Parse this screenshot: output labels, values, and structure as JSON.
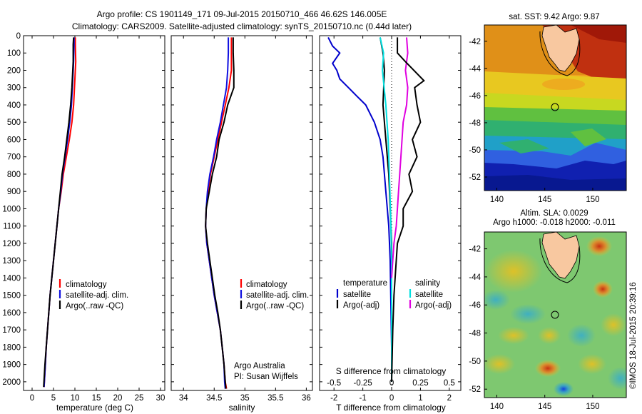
{
  "title_line1": "Argo profile: CS 1901149_171 09-Jul-2015 20150710_466 46.62S 146.005E",
  "title_line2": "Climatology: CARS2009. Satellite-adjusted climatology: synTS_20150710.nc (0.44d later)",
  "watermark": "©IMOS 18-Jul-2015 20:39:16",
  "colors": {
    "climatology": "#ff0000",
    "satellite": "#1010e0",
    "argo": "#000000",
    "t_satellite": "#0000cc",
    "s_satellite": "#00e0e0",
    "s_argo": "#e000e0",
    "land": "#f8c8a0"
  },
  "chart_data": [
    {
      "type": "line",
      "name": "temperature",
      "xlabel": "temperature (deg C)",
      "xlim": [
        -2,
        31
      ],
      "ylim": [
        2050,
        0
      ],
      "xticks": [
        0,
        5,
        10,
        15,
        20,
        25,
        30
      ],
      "yticks": [
        0,
        100,
        200,
        300,
        400,
        500,
        600,
        700,
        800,
        900,
        1000,
        1100,
        1200,
        1300,
        1400,
        1500,
        1600,
        1700,
        1800,
        1900,
        2000
      ],
      "legend": [
        "climatology",
        "satellite-adj. clim.",
        "Argo(..raw -QC)"
      ],
      "series": [
        {
          "name": "climatology",
          "color": "#ff0000",
          "x": [
            10.1,
            10.1,
            10.2,
            10.1,
            9.9,
            9.7,
            9.3,
            8.7,
            8.0,
            7.3,
            6.8,
            6.2,
            5.8,
            5.4,
            5.0,
            4.6,
            4.2,
            3.9,
            3.6,
            3.3,
            3.1,
            2.8
          ],
          "y": [
            10,
            50,
            150,
            200,
            300,
            400,
            500,
            600,
            700,
            800,
            900,
            1000,
            1100,
            1200,
            1300,
            1400,
            1500,
            1600,
            1700,
            1800,
            1900,
            2030
          ]
        },
        {
          "name": "satellite-adj. clim.",
          "color": "#1010e0",
          "x": [
            9.8,
            9.8,
            9.7,
            9.6,
            9.4,
            9.2,
            8.8,
            8.3,
            7.7,
            7.1,
            6.7,
            6.2,
            5.8,
            5.4,
            5.0,
            4.6,
            4.2,
            3.9,
            3.6,
            3.3,
            3.1,
            2.8
          ],
          "y": [
            10,
            50,
            150,
            200,
            300,
            400,
            500,
            600,
            700,
            800,
            900,
            1000,
            1100,
            1200,
            1300,
            1400,
            1500,
            1600,
            1700,
            1800,
            1900,
            2030
          ]
        },
        {
          "name": "Argo(..raw -QC)",
          "color": "#000000",
          "x": [
            9.7,
            9.6,
            9.6,
            9.5,
            9.3,
            9.0,
            8.6,
            8.1,
            7.6,
            7.0,
            6.6,
            6.2,
            5.8,
            5.4,
            5.0,
            4.6,
            4.2,
            3.9,
            3.6,
            3.3,
            3.0,
            2.7
          ],
          "y": [
            10,
            50,
            150,
            200,
            300,
            400,
            500,
            600,
            700,
            800,
            900,
            1000,
            1100,
            1200,
            1300,
            1400,
            1500,
            1600,
            1700,
            1800,
            1900,
            2030
          ]
        }
      ]
    },
    {
      "type": "line",
      "name": "salinity",
      "xlabel": "salinity",
      "xlim": [
        33.8,
        36.1
      ],
      "ylim": [
        2050,
        0
      ],
      "xticks": [
        34,
        34.5,
        35,
        35.5,
        36
      ],
      "legend": [
        "climatology",
        "satellite-adj. clim.",
        "Argo(..raw -QC)"
      ],
      "annotation": [
        "Argo Australia",
        "PI: Susan Wijffels"
      ],
      "series": [
        {
          "name": "climatology",
          "color": "#ff0000",
          "x": [
            34.78,
            34.78,
            34.78,
            34.74,
            34.68,
            34.62,
            34.56,
            34.5,
            34.44,
            34.4,
            34.37,
            34.36,
            34.38,
            34.42,
            34.46,
            34.5,
            34.55,
            34.6,
            34.63,
            34.66,
            34.68,
            34.7
          ],
          "y": [
            10,
            100,
            200,
            300,
            400,
            500,
            600,
            700,
            800,
            900,
            1000,
            1100,
            1200,
            1300,
            1400,
            1500,
            1600,
            1700,
            1800,
            1900,
            2000,
            2040
          ]
        },
        {
          "name": "satellite-adj. clim.",
          "color": "#1010e0",
          "x": [
            34.73,
            34.73,
            34.72,
            34.7,
            34.65,
            34.6,
            34.54,
            34.49,
            34.43,
            34.39,
            34.37,
            34.36,
            34.38,
            34.42,
            34.46,
            34.5,
            34.55,
            34.6,
            34.63,
            34.66,
            34.67,
            34.68
          ],
          "y": [
            10,
            100,
            200,
            300,
            400,
            500,
            600,
            700,
            800,
            900,
            1000,
            1100,
            1200,
            1300,
            1400,
            1500,
            1600,
            1700,
            1800,
            1900,
            2000,
            2040
          ]
        },
        {
          "name": "Argo(..raw -QC)",
          "color": "#000000",
          "x": [
            34.81,
            34.81,
            34.82,
            34.82,
            34.72,
            34.66,
            34.58,
            34.54,
            34.47,
            34.42,
            34.37,
            34.36,
            34.39,
            34.43,
            34.47,
            34.51,
            34.56,
            34.6,
            34.63,
            34.66,
            34.68,
            34.69
          ],
          "y": [
            10,
            100,
            200,
            300,
            400,
            500,
            600,
            700,
            800,
            900,
            1000,
            1100,
            1200,
            1300,
            1400,
            1500,
            1600,
            1700,
            1800,
            1900,
            2000,
            2040
          ]
        }
      ]
    },
    {
      "type": "line",
      "name": "differences",
      "xlabel": "T difference from climatology",
      "xlabel_top": "S difference from climatology",
      "xlim": [
        -2.5,
        2.4
      ],
      "xticks": [
        -2,
        -1,
        0,
        1,
        2
      ],
      "xticks_top": [
        "-0.5",
        "-0.25",
        "0",
        "0.25",
        "0.5"
      ],
      "ylim": [
        2050,
        0
      ],
      "legend_titles": [
        "temperature",
        "salinity"
      ],
      "legend_left": [
        "satellite",
        "Argo(-adj)"
      ],
      "legend_right": [
        "satellite",
        "Argo(-adj)"
      ],
      "series": [
        {
          "name": "T satellite",
          "color": "#0000cc",
          "x": [
            -2.2,
            -2.05,
            -1.8,
            -2.05,
            -1.9,
            -1.8,
            -1.5,
            -1.2,
            -0.9,
            -0.6,
            -0.4,
            -0.3,
            -0.2,
            -0.1,
            -0.05,
            -0.03,
            0,
            0
          ],
          "y": [
            10,
            60,
            100,
            160,
            200,
            250,
            300,
            350,
            400,
            500,
            600,
            700,
            900,
            1100,
            1300,
            1500,
            1800,
            2000
          ]
        },
        {
          "name": "T Argo(-adj)",
          "color": "#000000",
          "x": [
            -0.4,
            -0.3,
            -0.25,
            -0.3,
            -0.2,
            -0.1,
            -0.05,
            0,
            0,
            0,
            0
          ],
          "y": [
            10,
            100,
            200,
            400,
            600,
            800,
            1000,
            1200,
            1500,
            1800,
            2000
          ]
        },
        {
          "name": "S satellite",
          "color": "#00e0e0",
          "x": [
            -0.1,
            -0.07,
            -0.08,
            -0.05,
            -0.03,
            -0.02,
            -0.01,
            0,
            0,
            0
          ],
          "y": [
            10,
            100,
            200,
            400,
            600,
            800,
            1000,
            1300,
            1600,
            2000
          ]
        },
        {
          "name": "S Argo(-adj)",
          "color": "#e000e0",
          "x": [
            0.13,
            0.14,
            0.12,
            0.14,
            0.13,
            0.1,
            0.08,
            0.06,
            0.05,
            0.04,
            0.02,
            0.01,
            0
          ],
          "y": [
            10,
            100,
            200,
            300,
            400,
            500,
            700,
            900,
            1000,
            1100,
            1200,
            1300,
            1400
          ]
        },
        {
          "name": "S Argo",
          "color": "#000000",
          "x": [
            0.05,
            0.05,
            0.12,
            0.28,
            0.2,
            0.22,
            0.25,
            0.18,
            0.22,
            0.15,
            0.18,
            0.1,
            0.1,
            0.05,
            0.04,
            0.03,
            0.02,
            0.01,
            0
          ],
          "y": [
            10,
            100,
            150,
            260,
            300,
            400,
            500,
            600,
            700,
            800,
            900,
            1000,
            1100,
            1200,
            1300,
            1400,
            1500,
            1700,
            2000
          ]
        }
      ]
    },
    {
      "type": "heatmap",
      "name": "sst-map",
      "title": "sat. SST: 9.42  Argo: 9.87",
      "xticks": [
        140,
        145,
        150
      ],
      "yticks": [
        -42,
        -44,
        -46,
        -48,
        -50,
        -52
      ],
      "xlim": [
        138.7,
        153.5
      ],
      "ylim": [
        -53,
        -40.8
      ],
      "argo_position": {
        "lon": 146.005,
        "lat": -46.62
      }
    },
    {
      "type": "heatmap",
      "name": "sla-map",
      "title": "Altim. SLA: 0.0029",
      "subtitle": "Argo h1000: -0.018  h2000: -0.011",
      "xticks": [
        140,
        145,
        150
      ],
      "yticks": [
        -42,
        -44,
        -46,
        -48,
        -50,
        -52
      ],
      "xlim": [
        138.7,
        153.5
      ],
      "ylim": [
        -52.6,
        -40.8
      ],
      "argo_position": {
        "lon": 146.005,
        "lat": -46.62
      }
    }
  ]
}
